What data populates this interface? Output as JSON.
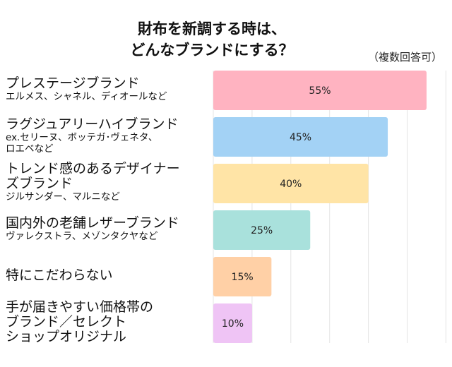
{
  "title_line1": "財布を新調する時は、",
  "title_line2": "どんなブランドにする？",
  "note": "（複数回答可）",
  "chart_data": {
    "type": "bar",
    "orientation": "horizontal",
    "title": "財布を新調する時は、どんなブランドにする？",
    "xlim": [
      0,
      60
    ],
    "grid": true,
    "categories": [
      {
        "main": [
          "プレステージブランド"
        ],
        "sub": [
          "エルメス、シャネル、ディオールなど"
        ]
      },
      {
        "main": [
          "ラグジュアリーハイブランド"
        ],
        "sub": [
          "ex.セリーヌ、ボッテガ･ヴェネタ、",
          "ロエベなど"
        ]
      },
      {
        "main": [
          "トレンド感のあるデザイナー",
          "ズブランド"
        ],
        "sub": [
          "ジルサンダー、マルニなど"
        ]
      },
      {
        "main": [
          "国内外の老舗レザーブランド"
        ],
        "sub": [
          "ヴァレクストラ、メゾンタクヤなど"
        ]
      },
      {
        "main": [
          "特にこだわらない"
        ],
        "sub": []
      },
      {
        "main": [
          "手が届きやすい価格帯の",
          "ブランド／セレクト",
          "ショップオリジナル"
        ],
        "sub": []
      }
    ],
    "values": [
      55,
      45,
      40,
      25,
      15,
      10
    ],
    "data_labels": [
      "55%",
      "45%",
      "40%",
      "25%",
      "15%",
      "10%"
    ],
    "colors": [
      "#ffb3c1",
      "#a3d2f5",
      "#ffe4a6",
      "#a9e1dc",
      "#ffd0a6",
      "#efc4f5"
    ]
  }
}
